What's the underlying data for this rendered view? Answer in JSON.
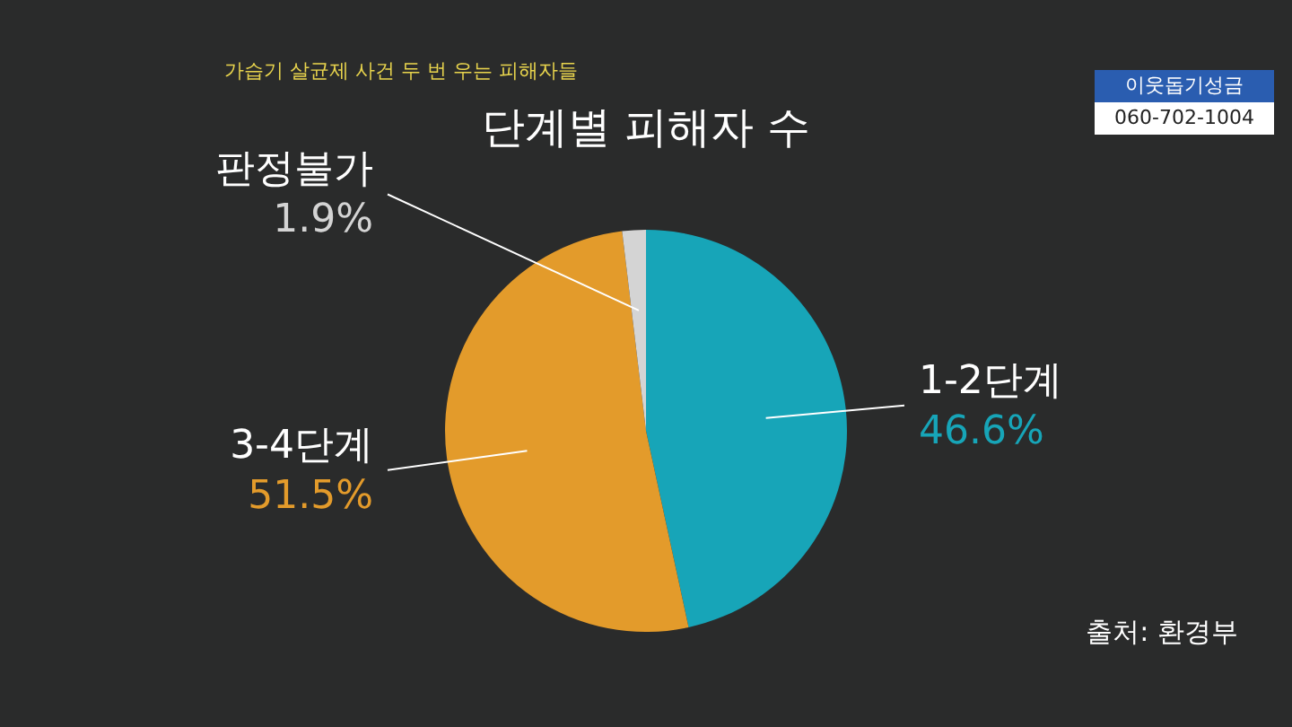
{
  "chart_data": {
    "type": "pie",
    "title": "단계별 피해자 수",
    "categories": [
      "1-2단계",
      "3-4단계",
      "판정불가"
    ],
    "values": [
      46.6,
      51.5,
      1.9
    ],
    "colors": [
      "#17a5b8",
      "#e39b2b",
      "#d4d4d4"
    ],
    "value_labels": [
      "46.6%",
      "51.5%",
      "1.9%"
    ],
    "legend": false,
    "annotations": [
      "가습기 살균제 사건 두 번 우는 피해자들",
      "이웃돕기성금",
      "060-702-1004",
      "출처: 환경부"
    ]
  }
}
